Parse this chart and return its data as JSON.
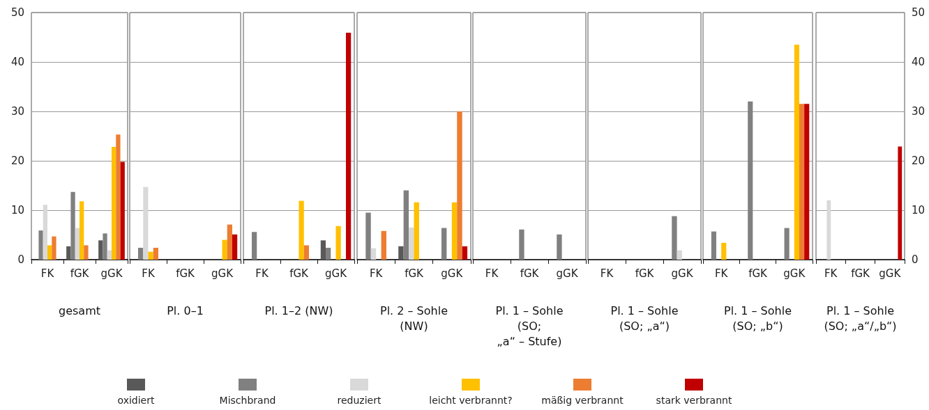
{
  "chart_data": [
    {
      "type": "bar",
      "xlabel": "gesamt",
      "categories": [
        "FK",
        "fGK",
        "gGK"
      ],
      "ylim": [
        0,
        50
      ],
      "yticks": [
        0,
        10,
        20,
        30,
        40,
        50
      ],
      "grid": "y",
      "legend": "bottom",
      "series": [
        {
          "name": "oxidiert",
          "color": "#595959",
          "values": [
            0,
            2.7,
            3.9
          ]
        },
        {
          "name": "Mischbrand",
          "color": "#808080",
          "values": [
            5.9,
            13.7,
            5.3
          ]
        },
        {
          "name": "reduziert",
          "color": "#d9d9d9",
          "values": [
            11.1,
            6.4,
            1.9
          ]
        },
        {
          "name": "leicht verbrannt?",
          "color": "#ffc000",
          "values": [
            2.9,
            11.8,
            22.8
          ]
        },
        {
          "name": "mäßig verbrannt",
          "color": "#ed7d31",
          "values": [
            4.7,
            2.9,
            25.3
          ]
        },
        {
          "name": "stark verbrannt",
          "color": "#c00000",
          "values": [
            0,
            0,
            19.8
          ]
        }
      ]
    },
    {
      "type": "bar",
      "xlabel": "Pl. 0–1",
      "categories": [
        "FK",
        "fGK",
        "gGK"
      ],
      "ylim": [
        0,
        50
      ],
      "yticks": [
        0,
        10,
        20,
        30,
        40,
        50
      ],
      "grid": "y",
      "tick_labels": "x",
      "series": [
        {
          "color": "#595959",
          "values": [
            0,
            0,
            0
          ]
        },
        {
          "color": "#808080",
          "values": [
            2.4,
            0,
            0
          ]
        },
        {
          "color": "#d9d9d9",
          "values": [
            14.7,
            0,
            0
          ]
        },
        {
          "color": "#ffc000",
          "values": [
            1.6,
            0,
            4.0
          ]
        },
        {
          "color": "#ed7d31",
          "values": [
            2.4,
            0,
            7.1
          ]
        },
        {
          "color": "#c00000",
          "values": [
            0,
            0,
            5.1
          ]
        }
      ]
    },
    {
      "type": "bar",
      "xlabel": "Pl. 1–2 (NW)",
      "categories": [
        "FK",
        "fGK",
        "gGK"
      ],
      "ylim": [
        0,
        50
      ],
      "yticks": [
        0,
        10,
        20,
        30,
        40,
        50
      ],
      "grid": "y",
      "tick_labels": "x",
      "series": [
        {
          "color": "#595959",
          "values": [
            0,
            0,
            3.9
          ]
        },
        {
          "color": "#808080",
          "values": [
            5.6,
            0,
            2.4
          ]
        },
        {
          "color": "#d9d9d9",
          "values": [
            0,
            0,
            0
          ]
        },
        {
          "color": "#ffc000",
          "values": [
            0,
            11.9,
            6.8
          ]
        },
        {
          "color": "#ed7d31",
          "values": [
            0,
            2.9,
            0
          ]
        },
        {
          "color": "#c00000",
          "values": [
            0,
            0,
            45.9
          ]
        }
      ]
    },
    {
      "type": "bar",
      "xlabel": "Pl. 2 – Sohle\n(NW)",
      "categories": [
        "FK",
        "fGK",
        "gGK"
      ],
      "ylim": [
        0,
        50
      ],
      "yticks": [
        0,
        10,
        20,
        30,
        40,
        50
      ],
      "grid": "y",
      "tick_labels": "x",
      "series": [
        {
          "color": "#595959",
          "values": [
            0,
            2.7,
            0
          ]
        },
        {
          "color": "#808080",
          "values": [
            9.5,
            14.0,
            6.4
          ]
        },
        {
          "color": "#d9d9d9",
          "values": [
            2.3,
            6.5,
            0
          ]
        },
        {
          "color": "#ffc000",
          "values": [
            0,
            11.6,
            11.6
          ]
        },
        {
          "color": "#ed7d31",
          "values": [
            5.8,
            0,
            30.0
          ]
        },
        {
          "color": "#c00000",
          "values": [
            0,
            0,
            2.7
          ]
        }
      ]
    },
    {
      "type": "bar",
      "xlabel": "Pl. 1 – Sohle\n(SO;\n„a“ – Stufe)",
      "categories": [
        "FK",
        "fGK",
        "gGK"
      ],
      "ylim": [
        0,
        50
      ],
      "yticks": [
        0,
        10,
        20,
        30,
        40,
        50
      ],
      "grid": "y",
      "tick_labels": "x",
      "series": [
        {
          "color": "#595959",
          "values": [
            0,
            0,
            0
          ]
        },
        {
          "color": "#808080",
          "values": [
            0,
            6.1,
            5.1
          ]
        },
        {
          "color": "#d9d9d9",
          "values": [
            0,
            0,
            0
          ]
        },
        {
          "color": "#ffc000",
          "values": [
            0,
            0,
            0
          ]
        },
        {
          "color": "#ed7d31",
          "values": [
            0,
            0,
            0
          ]
        },
        {
          "color": "#c00000",
          "values": [
            0,
            0,
            0
          ]
        }
      ]
    },
    {
      "type": "bar",
      "xlabel": "Pl. 1 – Sohle\n(SO; „a“)",
      "categories": [
        "FK",
        "fGK",
        "gGK"
      ],
      "ylim": [
        0,
        50
      ],
      "yticks": [
        0,
        10,
        20,
        30,
        40,
        50
      ],
      "grid": "y",
      "tick_labels": "x",
      "series": [
        {
          "color": "#595959",
          "values": [
            0,
            0,
            0
          ]
        },
        {
          "color": "#808080",
          "values": [
            0,
            0,
            8.8
          ]
        },
        {
          "color": "#d9d9d9",
          "values": [
            0,
            0,
            1.9
          ]
        },
        {
          "color": "#ffc000",
          "values": [
            0,
            0,
            0
          ]
        },
        {
          "color": "#ed7d31",
          "values": [
            0,
            0,
            0
          ]
        },
        {
          "color": "#c00000",
          "values": [
            0,
            0,
            0
          ]
        }
      ]
    },
    {
      "type": "bar",
      "xlabel": "Pl. 1 – Sohle\n(SO; „b“)",
      "categories": [
        "FK",
        "fGK",
        "gGK"
      ],
      "ylim": [
        0,
        50
      ],
      "yticks": [
        0,
        10,
        20,
        30,
        40,
        50
      ],
      "grid": "y",
      "tick_labels": "x",
      "series": [
        {
          "color": "#595959",
          "values": [
            0,
            0,
            0
          ]
        },
        {
          "color": "#808080",
          "values": [
            5.7,
            32.0,
            6.4
          ]
        },
        {
          "color": "#d9d9d9",
          "values": [
            0,
            0,
            0
          ]
        },
        {
          "color": "#ffc000",
          "values": [
            3.4,
            0,
            43.5
          ]
        },
        {
          "color": "#ed7d31",
          "values": [
            0,
            0,
            31.5
          ]
        },
        {
          "color": "#c00000",
          "values": [
            0,
            0,
            31.5
          ]
        }
      ]
    },
    {
      "type": "bar",
      "xlabel": "Pl. 1 – Sohle\n(SO; „a“/„b“)",
      "categories": [
        "FK",
        "fGK",
        "gGK"
      ],
      "y2lim": [
        0,
        50
      ],
      "y2ticks": [
        0,
        10,
        20,
        30,
        40,
        50
      ],
      "grid": "y",
      "series": [
        {
          "color": "#595959",
          "axis": "y2",
          "values": [
            0,
            0,
            0
          ]
        },
        {
          "color": "#808080",
          "axis": "y2",
          "values": [
            0,
            0,
            0
          ]
        },
        {
          "color": "#d9d9d9",
          "axis": "y2",
          "values": [
            12.0,
            0,
            0
          ]
        },
        {
          "color": "#ffc000",
          "axis": "y2",
          "values": [
            0,
            0,
            0
          ]
        },
        {
          "color": "#ed7d31",
          "axis": "y2",
          "values": [
            0,
            0,
            0
          ]
        },
        {
          "color": "#c00000",
          "axis": "y2",
          "values": [
            0,
            0,
            22.9
          ]
        }
      ]
    }
  ]
}
